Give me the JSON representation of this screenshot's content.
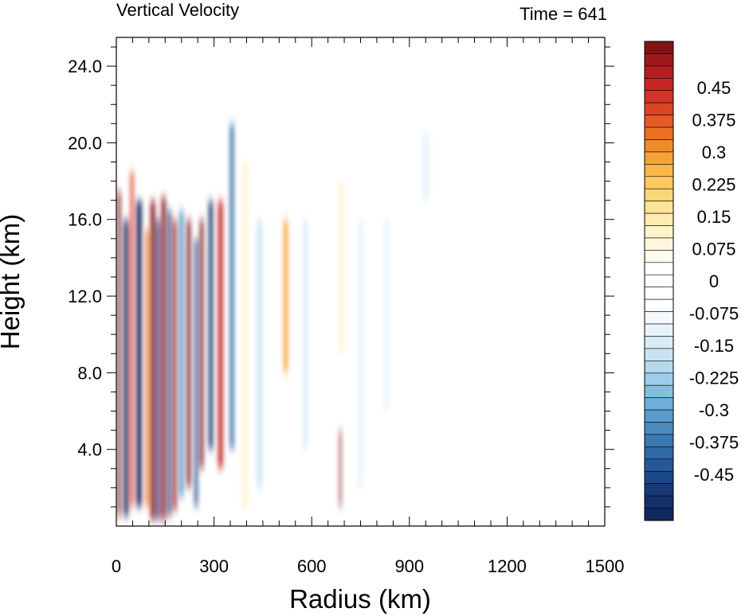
{
  "chart_data": {
    "type": "heatmap",
    "title": "Vertical Velocity",
    "subtitle": "Time = 641",
    "xlabel": "Radius (km)",
    "ylabel": "Height (km)",
    "xlim": [
      0,
      1500
    ],
    "ylim": [
      0,
      25.5
    ],
    "x_ticks": [
      "0",
      "300",
      "600",
      "900",
      "1200",
      "1500"
    ],
    "x_tick_values": [
      0,
      300,
      600,
      900,
      1200,
      1500
    ],
    "y_ticks": [
      "4.0",
      "8.0",
      "12.0",
      "16.0",
      "20.0",
      "24.0"
    ],
    "y_tick_values": [
      4,
      8,
      12,
      16,
      20,
      24
    ],
    "colorbar": {
      "levels": [
        0.5,
        0.475,
        0.45,
        0.425,
        0.4,
        0.375,
        0.35,
        0.325,
        0.3,
        0.275,
        0.25,
        0.225,
        0.2,
        0.175,
        0.15,
        0.125,
        0.1,
        0.075,
        0.05,
        0.025,
        0,
        -0.025,
        -0.05,
        -0.075,
        -0.1,
        -0.125,
        -0.15,
        -0.175,
        -0.2,
        -0.225,
        -0.25,
        -0.275,
        -0.3,
        -0.325,
        -0.35,
        -0.375,
        -0.4,
        -0.425,
        -0.45,
        -0.475,
        -0.5
      ],
      "labels": [
        "0.45",
        "0.375",
        "0.3",
        "0.225",
        "0.15",
        "0.075",
        "0",
        "-0.075",
        "-0.15",
        "-0.225",
        "-0.3",
        "-0.375",
        "-0.45"
      ],
      "label_values": [
        0.45,
        0.375,
        0.3,
        0.225,
        0.15,
        0.075,
        0,
        -0.075,
        -0.15,
        -0.225,
        -0.3,
        -0.375,
        -0.45
      ],
      "colors": [
        "#7f1416",
        "#9c1a1c",
        "#b41e20",
        "#c52626",
        "#d23328",
        "#dc4426",
        "#e45a24",
        "#ec7022",
        "#f28a2a",
        "#f7a236",
        "#fab748",
        "#fcc860",
        "#fdd67a",
        "#fee297",
        "#fdebb1",
        "#fdf2c8",
        "#fef7dd",
        "#fffbee",
        "#ffffff",
        "#ffffff",
        "#ffffff",
        "#ffffff",
        "#f3f9fd",
        "#e7f3fb",
        "#d9ecf8",
        "#c8e4f4",
        "#b3d9ef",
        "#9ccde9",
        "#84bfe1",
        "#6eaed8",
        "#5a9ccc",
        "#4a8abf",
        "#3c78b1",
        "#3068a4",
        "#265896",
        "#1d4886",
        "#173a75",
        "#13306a",
        "#112a5e"
      ]
    },
    "bands_description": "Alternating vertical bands of updraft and downdraft, strongest between about 0 and 380 km radius below 17 km height, weaker features out to about 950 km.",
    "bands": [
      {
        "x": 8,
        "w": 9,
        "y0": 0.5,
        "y1": 17.5,
        "v": 0.5
      },
      {
        "x": 30,
        "w": 14,
        "y0": 0.5,
        "y1": 16.0,
        "v": -0.45
      },
      {
        "x": 48,
        "w": 9,
        "y0": 1.0,
        "y1": 18.5,
        "v": 0.35
      },
      {
        "x": 70,
        "w": 16,
        "y0": 1.0,
        "y1": 17.0,
        "v": -0.5
      },
      {
        "x": 95,
        "w": 9,
        "y0": 1.0,
        "y1": 15.5,
        "v": 0.3
      },
      {
        "x": 112,
        "w": 13,
        "y0": 0.3,
        "y1": 17.0,
        "v": 0.5
      },
      {
        "x": 128,
        "w": 9,
        "y0": 0.3,
        "y1": 16.0,
        "v": -0.5
      },
      {
        "x": 145,
        "w": 12,
        "y0": 0.3,
        "y1": 17.2,
        "v": 0.5
      },
      {
        "x": 163,
        "w": 9,
        "y0": 0.5,
        "y1": 16.5,
        "v": -0.45
      },
      {
        "x": 180,
        "w": 10,
        "y0": 0.8,
        "y1": 16.0,
        "v": 0.45
      },
      {
        "x": 200,
        "w": 11,
        "y0": 1.5,
        "y1": 16.5,
        "v": -0.3
      },
      {
        "x": 222,
        "w": 11,
        "y0": 2.0,
        "y1": 16.0,
        "v": 0.5
      },
      {
        "x": 245,
        "w": 9,
        "y0": 1.0,
        "y1": 15.0,
        "v": -0.4
      },
      {
        "x": 262,
        "w": 10,
        "y0": 3.0,
        "y1": 16.0,
        "v": 0.5
      },
      {
        "x": 290,
        "w": 12,
        "y0": 4.0,
        "y1": 17.0,
        "v": -0.45
      },
      {
        "x": 320,
        "w": 14,
        "y0": 3.0,
        "y1": 17.0,
        "v": 0.4
      },
      {
        "x": 355,
        "w": 11,
        "y0": 4.0,
        "y1": 21.0,
        "v": -0.35
      },
      {
        "x": 395,
        "w": 14,
        "y0": 1.0,
        "y1": 19.0,
        "v": 0.1
      },
      {
        "x": 440,
        "w": 15,
        "y0": 2.0,
        "y1": 16.0,
        "v": -0.15
      },
      {
        "x": 520,
        "w": 12,
        "y0": 8.0,
        "y1": 16.0,
        "v": 0.25
      },
      {
        "x": 580,
        "w": 14,
        "y0": 4.0,
        "y1": 16.0,
        "v": -0.12
      },
      {
        "x": 688,
        "w": 5,
        "y0": 1.0,
        "y1": 5.0,
        "v": 0.5
      },
      {
        "x": 690,
        "w": 12,
        "y0": 9.0,
        "y1": 18.0,
        "v": 0.1
      },
      {
        "x": 750,
        "w": 15,
        "y0": 2.0,
        "y1": 16.0,
        "v": -0.1
      },
      {
        "x": 830,
        "w": 14,
        "y0": 6.0,
        "y1": 16.0,
        "v": -0.1
      },
      {
        "x": 950,
        "w": 20,
        "y0": 17.0,
        "y1": 20.5,
        "v": -0.08
      }
    ]
  }
}
